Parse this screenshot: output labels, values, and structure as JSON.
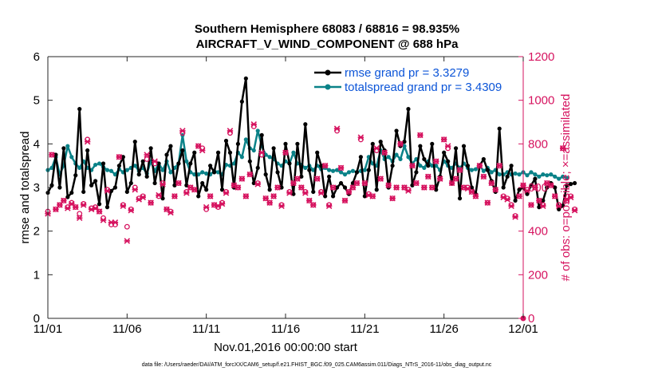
{
  "chart_data": {
    "type": "line",
    "title": "Southern Hemisphere 68083 / 68816 = 98.935%",
    "subtitle": "AIRCRAFT_V_WIND_COMPONENT @ 688 hPa",
    "xlabel": "Nov.01,2016 00:00:00 start",
    "ylabel_left": "rmse and totalspread",
    "ylabel_right": "# of obs: o=possible; ×=assimilated",
    "footnote": "data file: /Users/raeder/DAI/ATM_forcXX/CAM6_setup/f.e21.FHIST_BGC.f09_025.CAM6assim.011/Diags_NTrS_2016-11/obs_diag_output.nc",
    "xlim": [
      0,
      30
    ],
    "ylim_left": [
      0,
      6
    ],
    "ylim_right": [
      0,
      1200
    ],
    "x_ticks": [
      {
        "v": 0,
        "label": "11/01"
      },
      {
        "v": 5,
        "label": "11/06"
      },
      {
        "v": 10,
        "label": "11/11"
      },
      {
        "v": 15,
        "label": "11/16"
      },
      {
        "v": 20,
        "label": "11/21"
      },
      {
        "v": 25,
        "label": "11/26"
      },
      {
        "v": 30,
        "label": "12/01"
      }
    ],
    "y_left_ticks": [
      {
        "v": 0,
        "label": "0"
      },
      {
        "v": 1,
        "label": "1"
      },
      {
        "v": 2,
        "label": "2"
      },
      {
        "v": 3,
        "label": "3"
      },
      {
        "v": 4,
        "label": "4"
      },
      {
        "v": 5,
        "label": "5"
      },
      {
        "v": 6,
        "label": "6"
      }
    ],
    "y_right_ticks": [
      {
        "v": 0,
        "label": "0"
      },
      {
        "v": 200,
        "label": "200"
      },
      {
        "v": 400,
        "label": "400"
      },
      {
        "v": 600,
        "label": "600"
      },
      {
        "v": 800,
        "label": "800"
      },
      {
        "v": 1000,
        "label": "1000"
      },
      {
        "v": 1200,
        "label": "1200"
      }
    ],
    "series": [
      {
        "name": "rmse grand pr = 3.3279",
        "axis": "left",
        "color": "#000000",
        "x_start": 0.0,
        "x_step": 0.25,
        "values": [
          2.88,
          3.05,
          3.75,
          3.0,
          3.9,
          2.78,
          2.88,
          3.28,
          4.8,
          2.9,
          3.85,
          3.05,
          3.15,
          2.62,
          3.55,
          2.55,
          2.92,
          3.0,
          3.5,
          3.7,
          2.9,
          3.1,
          4.05,
          3.3,
          3.6,
          3.25,
          3.9,
          3.1,
          3.55,
          2.75,
          3.75,
          3.95,
          3.05,
          3.55,
          3.85,
          3.05,
          3.55,
          3.8,
          2.8,
          3.1,
          2.95,
          3.5,
          3.35,
          3.8,
          2.95,
          4.07,
          3.8,
          3.0,
          4.0,
          4.97,
          5.5,
          3.6,
          3.1,
          3.45,
          4.2,
          3.3,
          2.95,
          3.9,
          3.35,
          3.0,
          4.0,
          3.55,
          2.85,
          4.0,
          3.25,
          4.45,
          3.4,
          2.9,
          3.8,
          3.5,
          2.8,
          3.25,
          2.8,
          3.0,
          3.1,
          3.0,
          2.85,
          3.1,
          3.35,
          3.7,
          2.8,
          3.4,
          4.0,
          2.95,
          4.05,
          3.85,
          3.0,
          3.5,
          4.3,
          3.95,
          4.05,
          4.8,
          3.05,
          3.35,
          3.95,
          3.65,
          3.5,
          4.0,
          2.95,
          3.25,
          3.8,
          3.6,
          3.1,
          3.9,
          2.75,
          3.95,
          3.5,
          3.0,
          2.85,
          3.5,
          3.65,
          3.4,
          3.15,
          2.9,
          4.35,
          3.0,
          3.25,
          3.5,
          2.7,
          2.95,
          3.0,
          2.85,
          3.05,
          3.2,
          2.55,
          2.7,
          3.0,
          3.1,
          3.0,
          2.5,
          2.58,
          3.05,
          3.08,
          3.1
        ]
      },
      {
        "name": "totalspread grand pr = 3.4309",
        "axis": "left",
        "color": "#0a8288",
        "x_start": 0.0,
        "x_step": 0.25,
        "values": [
          3.4,
          3.45,
          3.7,
          3.3,
          3.5,
          3.95,
          3.7,
          3.55,
          3.45,
          3.6,
          3.45,
          3.4,
          3.52,
          3.55,
          3.47,
          3.4,
          3.38,
          3.3,
          3.42,
          3.35,
          3.4,
          3.45,
          3.5,
          3.38,
          3.45,
          3.32,
          3.6,
          3.38,
          3.55,
          3.4,
          3.6,
          3.35,
          3.45,
          3.55,
          4.2,
          3.6,
          3.35,
          3.3,
          3.3,
          3.35,
          3.32,
          3.3,
          3.38,
          3.35,
          3.3,
          3.52,
          3.5,
          3.55,
          3.8,
          3.7,
          4.1,
          3.9,
          3.85,
          4.3,
          3.95,
          3.75,
          3.7,
          3.65,
          3.55,
          3.5,
          3.6,
          3.55,
          3.8,
          3.55,
          3.52,
          3.45,
          3.5,
          3.4,
          3.5,
          3.42,
          3.45,
          3.4,
          3.38,
          3.4,
          3.35,
          3.3,
          3.35,
          3.38,
          3.35,
          3.38,
          3.4,
          3.7,
          3.55,
          3.5,
          3.85,
          3.65,
          3.7,
          3.6,
          3.75,
          3.65,
          3.95,
          3.7,
          3.55,
          3.65,
          3.5,
          3.45,
          3.6,
          3.5,
          3.5,
          3.4,
          3.6,
          3.5,
          3.45,
          3.55,
          3.45,
          3.55,
          3.45,
          3.4,
          3.42,
          3.5,
          3.38,
          3.45,
          3.35,
          3.4,
          3.3,
          3.3,
          3.35,
          3.3,
          3.32,
          3.3,
          3.35,
          3.28,
          3.35,
          3.3,
          3.25,
          3.3,
          3.28,
          3.3,
          3.25,
          3.2,
          3.25,
          3.22
        ]
      },
      {
        "name": "# of obs possible",
        "axis": "right",
        "color": "#d6135f",
        "marker": "o",
        "x_start": 0.0,
        "x_step": 0.25,
        "values": [
          490,
          750,
          500,
          520,
          540,
          510,
          530,
          510,
          480,
          525,
          820,
          505,
          510,
          490,
          460,
          590,
          430,
          430,
          740,
          520,
          420,
          500,
          600,
          550,
          560,
          730,
          530,
          710,
          560,
          620,
          500,
          490,
          560,
          620,
          850,
          580,
          600,
          590,
          790,
          780,
          500,
          560,
          520,
          510,
          530,
          580,
          850,
          610,
          600,
          640,
          560,
          660,
          880,
          620,
          750,
          550,
          530,
          560,
          600,
          520,
          760,
          580,
          620,
          640,
          600,
          580,
          540,
          520,
          640,
          580,
          700,
          520,
          600,
          860,
          690,
          540,
          580,
          600,
          620,
          820,
          620,
          570,
          560,
          770,
          640,
          760,
          610,
          550,
          600,
          800,
          600,
          590,
          700,
          620,
          840,
          600,
          650,
          600,
          720,
          640,
          820,
          780,
          620,
          640,
          680,
          600,
          600,
          580,
          560,
          700,
          650,
          530,
          620,
          590,
          700,
          560,
          550,
          520,
          470,
          560,
          610,
          590,
          520,
          600,
          540,
          520,
          620,
          610,
          560,
          520,
          780,
          540,
          560,
          500
        ]
      },
      {
        "name": "# of obs assimilated",
        "axis": "right",
        "color": "#d6135f",
        "marker": "x",
        "x_start": 0.0,
        "x_step": 0.25,
        "values": [
          480,
          750,
          500,
          520,
          540,
          505,
          525,
          510,
          460,
          520,
          810,
          500,
          505,
          490,
          450,
          585,
          440,
          440,
          740,
          515,
          355,
          495,
          590,
          545,
          555,
          750,
          530,
          720,
          565,
          615,
          500,
          485,
          560,
          620,
          860,
          575,
          600,
          590,
          790,
          770,
          510,
          560,
          520,
          515,
          525,
          575,
          860,
          610,
          600,
          640,
          560,
          660,
          890,
          615,
          760,
          550,
          530,
          560,
          600,
          515,
          760,
          575,
          620,
          640,
          600,
          575,
          540,
          520,
          640,
          575,
          700,
          515,
          600,
          870,
          690,
          540,
          580,
          600,
          620,
          830,
          620,
          565,
          560,
          780,
          640,
          760,
          610,
          550,
          600,
          800,
          600,
          585,
          700,
          620,
          840,
          600,
          650,
          600,
          720,
          640,
          820,
          790,
          620,
          640,
          680,
          600,
          595,
          580,
          560,
          700,
          650,
          530,
          620,
          590,
          700,
          555,
          545,
          515,
          465,
          560,
          610,
          585,
          520,
          600,
          540,
          515,
          620,
          610,
          560,
          515,
          780,
          545,
          555,
          495
        ]
      }
    ]
  }
}
